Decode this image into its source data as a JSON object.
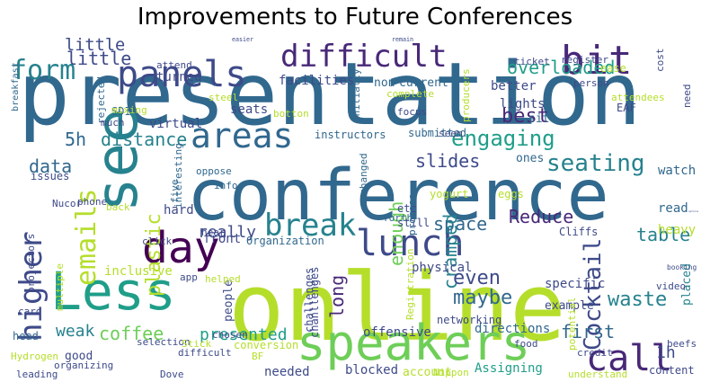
{
  "title": "Improvements to Future Conferences",
  "palette": {
    "dark_purple": "#440154",
    "indigo": "#482878",
    "slate_blue": "#3e4a89",
    "steel_blue": "#31688e",
    "teal_blue": "#26828e",
    "teal": "#1f9e89",
    "green": "#35b779",
    "light_green": "#6ece58",
    "yellow_green": "#b5de2b",
    "yellow": "#fde725"
  },
  "words": [
    {
      "text": "presentation",
      "color": "#31688e"
    },
    {
      "text": "online",
      "color": "#b5de2b"
    },
    {
      "text": "conference",
      "color": "#31688e"
    },
    {
      "text": "screen",
      "color": "#3e4a89"
    },
    {
      "text": "speakers",
      "color": "#6ece58"
    },
    {
      "text": "see",
      "color": "#26828e"
    },
    {
      "text": "Less",
      "color": "#1f9e89"
    },
    {
      "text": "day",
      "color": "#440154"
    },
    {
      "text": "difficult",
      "color": "#482878"
    },
    {
      "text": "panels",
      "color": "#3e4a89"
    },
    {
      "text": "bit",
      "color": "#482878"
    },
    {
      "text": "form",
      "color": "#26828e"
    },
    {
      "text": "areas",
      "color": "#31688e"
    },
    {
      "text": "break",
      "color": "#26828e"
    },
    {
      "text": "lunch",
      "color": "#3e4a89"
    },
    {
      "text": "call",
      "color": "#482878"
    },
    {
      "text": "higher",
      "color": "#3e4a89"
    },
    {
      "text": "emails",
      "color": "#b5de2b"
    },
    {
      "text": "engaging",
      "color": "#1f9e89"
    },
    {
      "text": "seating",
      "color": "#26828e"
    },
    {
      "text": "Cocktail",
      "color": "#3e4a89"
    },
    {
      "text": "overloaded",
      "color": "#1f9e89"
    },
    {
      "text": "little",
      "color": "#3e4a89"
    },
    {
      "text": "distance",
      "color": "#26828e"
    },
    {
      "text": "slides",
      "color": "#3e4a89"
    },
    {
      "text": "best",
      "color": "#482878"
    },
    {
      "text": "5h",
      "color": "#31688e"
    },
    {
      "text": "data",
      "color": "#31688e"
    },
    {
      "text": "plastic",
      "color": "#b5de2b"
    },
    {
      "text": "really",
      "color": "#3e4a89"
    },
    {
      "text": "space",
      "color": "#31688e"
    },
    {
      "text": "Reduce",
      "color": "#482878"
    },
    {
      "text": "table",
      "color": "#26828e"
    },
    {
      "text": "enough",
      "color": "#6ece58"
    },
    {
      "text": "cramped",
      "color": "#26828e"
    },
    {
      "text": "even",
      "color": "#3e4a89"
    },
    {
      "text": "maybe",
      "color": "#31688e"
    },
    {
      "text": "long",
      "color": "#482878"
    },
    {
      "text": "waste",
      "color": "#26828e"
    },
    {
      "text": "presented",
      "color": "#1f9e89"
    },
    {
      "text": "coffee",
      "color": "#6ece58"
    },
    {
      "text": "weak",
      "color": "#26828e"
    },
    {
      "text": "first",
      "color": "#31688e"
    },
    {
      "text": "1h",
      "color": "#3e4a89"
    },
    {
      "text": "virtual",
      "color": "#3e4a89"
    },
    {
      "text": "facilities",
      "color": "#3e4a89"
    },
    {
      "text": "seats",
      "color": "#3e4a89"
    },
    {
      "text": "turned",
      "color": "#3e4a89"
    },
    {
      "text": "non",
      "color": "#31688e"
    },
    {
      "text": "current",
      "color": "#31688e"
    },
    {
      "text": "better",
      "color": "#3e4a89"
    },
    {
      "text": "lights",
      "color": "#3e4a89"
    },
    {
      "text": "sit",
      "color": "#31688e"
    },
    {
      "text": "watch",
      "color": "#31688e"
    },
    {
      "text": "read",
      "color": "#31688e"
    },
    {
      "text": "heavy",
      "color": "#b5de2b"
    },
    {
      "text": "placed",
      "color": "#26828e"
    },
    {
      "text": "specific",
      "color": "#3e4a89"
    },
    {
      "text": "physical",
      "color": "#3e4a89"
    },
    {
      "text": "example",
      "color": "#3e4a89"
    },
    {
      "text": "networking",
      "color": "#3e4a89"
    },
    {
      "text": "directions",
      "color": "#31688e"
    },
    {
      "text": "offensive",
      "color": "#3e4a89"
    },
    {
      "text": "blocked",
      "color": "#3e4a89"
    },
    {
      "text": "account",
      "color": "#b5de2b"
    },
    {
      "text": "Assigning",
      "color": "#1f9e89"
    },
    {
      "text": "needed",
      "color": "#3e4a89"
    },
    {
      "text": "hard",
      "color": "#3e4a89"
    },
    {
      "text": "front",
      "color": "#3e4a89"
    },
    {
      "text": "inclusive",
      "color": "#b5de2b"
    },
    {
      "text": "people",
      "color": "#3e4a89"
    },
    {
      "text": "chanllenges",
      "color": "#3e4a89"
    },
    {
      "text": "good",
      "color": "#3e4a89"
    },
    {
      "text": "head",
      "color": "#31688e"
    },
    {
      "text": "ones",
      "color": "#31688e"
    },
    {
      "text": "instructors",
      "color": "#31688e"
    },
    {
      "text": "submitted",
      "color": "#31688e"
    },
    {
      "text": "little",
      "color": "#3e4a89"
    },
    {
      "text": "attend",
      "color": "#3e4a89"
    },
    {
      "text": "easier",
      "color": "#3e4a89"
    },
    {
      "text": "remain",
      "color": "#3e4a89"
    },
    {
      "text": "ticket",
      "color": "#3e4a89"
    },
    {
      "text": "register",
      "color": "#3e4a89"
    },
    {
      "text": "ease",
      "color": "#b5de2b"
    },
    {
      "text": "cost",
      "color": "#3e4a89"
    },
    {
      "text": "breakfast",
      "color": "#31688e"
    },
    {
      "text": "SDI",
      "color": "#31688e"
    },
    {
      "text": "rejected",
      "color": "#31688e"
    },
    {
      "text": "steel",
      "color": "#b5de2b"
    },
    {
      "text": "mixing",
      "color": "#b5de2b"
    },
    {
      "text": "much",
      "color": "#3e4a89"
    },
    {
      "text": "botton",
      "color": "#b5de2b"
    },
    {
      "text": "initially",
      "color": "#31688e"
    },
    {
      "text": "complete",
      "color": "#b5de2b"
    },
    {
      "text": "producers",
      "color": "#b5de2b"
    },
    {
      "text": "person",
      "color": "#3e4a89"
    },
    {
      "text": "attendees",
      "color": "#b5de2b"
    },
    {
      "text": "need",
      "color": "#3e4a89"
    },
    {
      "text": "focus",
      "color": "#3e4a89"
    },
    {
      "text": "EAF",
      "color": "#3e4a89"
    },
    {
      "text": "seem",
      "color": "#3e4a89"
    },
    {
      "text": "issues",
      "color": "#3e4a89"
    },
    {
      "text": "phone",
      "color": "#3e4a89"
    },
    {
      "text": "Nucor",
      "color": "#3e4a89"
    },
    {
      "text": "oppose",
      "color": "#31688e"
    },
    {
      "text": "five",
      "color": "#31688e"
    },
    {
      "text": "info",
      "color": "#31688e"
    },
    {
      "text": "interesting",
      "color": "#31688e"
    },
    {
      "text": "hear",
      "color": "#3e4a89"
    },
    {
      "text": "exchanged",
      "color": "#31688e"
    },
    {
      "text": "etc",
      "color": "#3e4a89"
    },
    {
      "text": "still",
      "color": "#3e4a89"
    },
    {
      "text": "process",
      "color": "#31688e"
    },
    {
      "text": "yogurt",
      "color": "#b5de2b"
    },
    {
      "text": "eggs",
      "color": "#b5de2b"
    },
    {
      "text": "options",
      "color": "#3e4a89"
    },
    {
      "text": "booking",
      "color": "#3e4a89"
    },
    {
      "text": "video",
      "color": "#3e4a89"
    },
    {
      "text": "Cliffs",
      "color": "#3e4a89"
    },
    {
      "text": "forth",
      "color": "#31688e"
    },
    {
      "text": "back",
      "color": "#b5de2b"
    },
    {
      "text": "projectors",
      "color": "#3e4a89"
    },
    {
      "text": "card",
      "color": "#3e4a89"
    },
    {
      "text": "multiple",
      "color": "#b5de2b"
    },
    {
      "text": "click",
      "color": "#3e4a89"
    },
    {
      "text": "app",
      "color": "#3e4a89"
    },
    {
      "text": "helped",
      "color": "#b5de2b"
    },
    {
      "text": "Organization",
      "color": "#31688e"
    },
    {
      "text": "Registration",
      "color": "#b5de2b"
    },
    {
      "text": "selection",
      "color": "#3e4a89"
    },
    {
      "text": "chosen",
      "color": "#3e4a89"
    },
    {
      "text": "difficult",
      "color": "#3e4a89"
    },
    {
      "text": "organizing",
      "color": "#3e4a89"
    },
    {
      "text": "Stick",
      "color": "#b5de2b"
    },
    {
      "text": "conversion",
      "color": "#b5de2b"
    },
    {
      "text": "Hydrogen",
      "color": "#b5de2b"
    },
    {
      "text": "leading",
      "color": "#3e4a89"
    },
    {
      "text": "Dove",
      "color": "#3e4a89"
    },
    {
      "text": "BF",
      "color": "#b5de2b"
    },
    {
      "text": "Nippon",
      "color": "#b5de2b"
    },
    {
      "text": "food",
      "color": "#3e4a89"
    },
    {
      "text": "credit",
      "color": "#3e4a89"
    },
    {
      "text": "potential",
      "color": "#b5de2b"
    },
    {
      "text": "beefs",
      "color": "#3e4a89"
    },
    {
      "text": "understand",
      "color": "#b5de2b"
    },
    {
      "text": "content",
      "color": "#3e4a89"
    },
    {
      "text": "challenges",
      "color": "#3e4a89"
    }
  ]
}
